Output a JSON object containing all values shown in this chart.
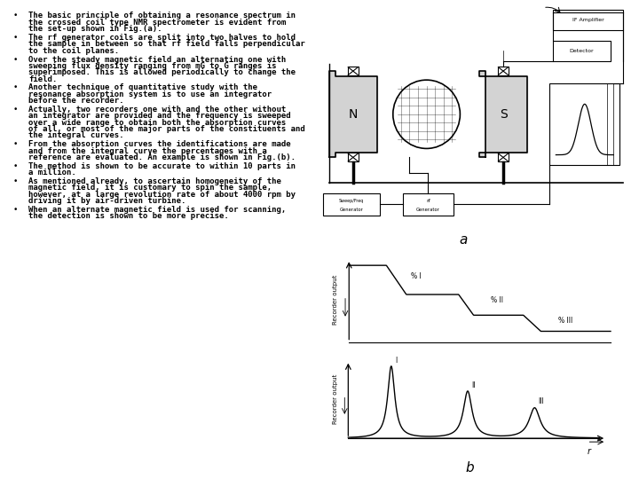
{
  "background_color": "#ffffff",
  "text_color": "#000000",
  "bullet_points": [
    "The basic principle of obtaining a resonance spectrum in\nthe crossed coil type NMR spectrometer is evident from\nthe set-up shown in Fig.(a).",
    "The rf generator coils are split into two halves to hold\nthe sample in between so that rf field falls perpendicular\nto the coil planes.",
    "Over the steady magnetic field an alternating one with\nsweeping flux density ranging from mG to G ranges is\nsuperimposed. This is allowed periodically to change the\nfield.",
    "Another technique of quantitative study with the\nresonance absorption system is to use an integrator\nbefore the recorder.",
    "Actually, two recorders one with and the other without\nan integrator are provided and the frequency is sweeped\nover a wide range to obtain both the absorption curves\nof all, or most of the major parts of the constituents and\nthe integral curves.",
    "From the absorption curves the identifications are made\nand from the integral curve the percentages with a\nreference are evaluated. An example is shown in Fig.(b).",
    "The method is shown to be accurate to within 10 parts in\na million.",
    "As mentioned already, to ascertain homogeneity of the\nmagnetic field, it is customary to spin the sample,\nhowever, at a large revolution rate of about 4000 rpm by\ndriving it by air-driven turbine.",
    "When an alternate magnetic field is used for scanning,\nthe detection is shown to be more precise."
  ],
  "label_a": "a",
  "label_b": "b",
  "integral_ylabel": "Recorder output",
  "absorption_ylabel": "Recorder output",
  "absorption_xlabel": "r",
  "integral_labels": [
    "% I",
    "% II",
    "% III"
  ],
  "absorption_labels": [
    "I",
    "II",
    "III"
  ]
}
